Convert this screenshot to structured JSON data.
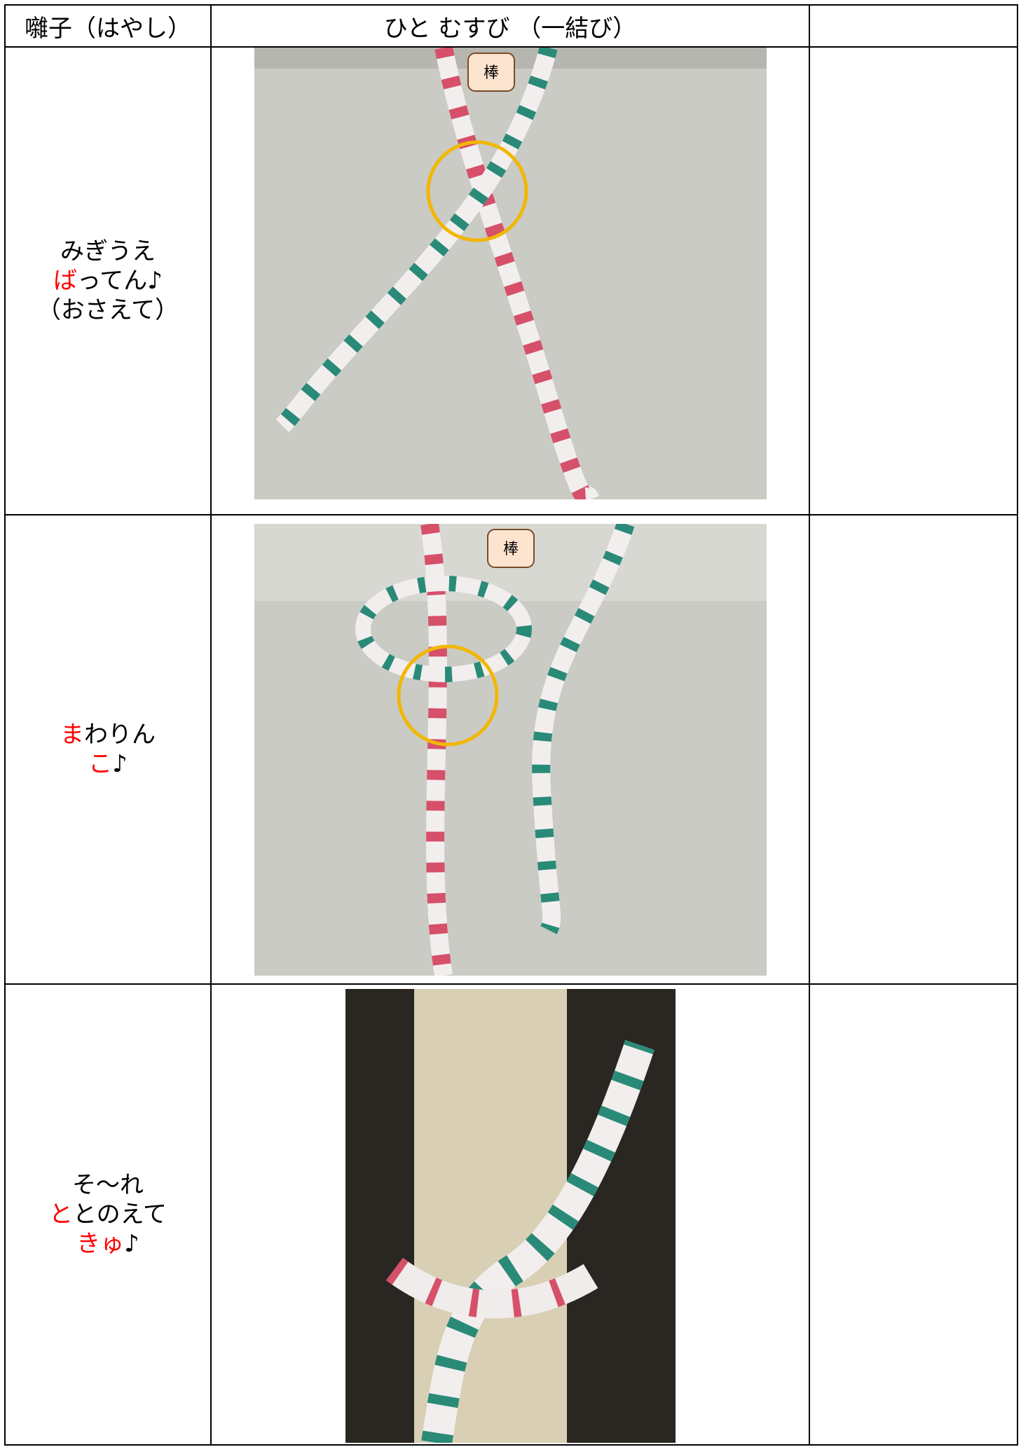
{
  "table": {
    "header": [
      "囃子（はやし）",
      "ひと むすび （一結び）"
    ],
    "rows": [
      {
        "chant": [
          [
            {
              "t": "みぎうえ"
            }
          ],
          [
            {
              "t": "ば",
              "color": "#ff0000"
            },
            {
              "t": "ってん♪"
            }
          ],
          [
            {
              "t": "（おさえて）"
            }
          ]
        ],
        "photo_label": "棒"
      },
      {
        "chant": [
          [
            {
              "t": "ま",
              "color": "#ff0000"
            },
            {
              "t": "わりん"
            }
          ],
          [
            {
              "t": "こ",
              "color": "#ff0000"
            },
            {
              "t": "♪"
            }
          ]
        ],
        "photo_label": "棒"
      },
      {
        "chant": [
          [
            {
              "t": "そ〜れ"
            }
          ],
          [
            {
              "t": "と",
              "color": "#ff0000"
            },
            {
              "t": "とのえて"
            }
          ],
          [
            {
              "t": "きゅ",
              "color": "#ff0000"
            },
            {
              "t": "♪"
            }
          ]
        ]
      }
    ]
  }
}
